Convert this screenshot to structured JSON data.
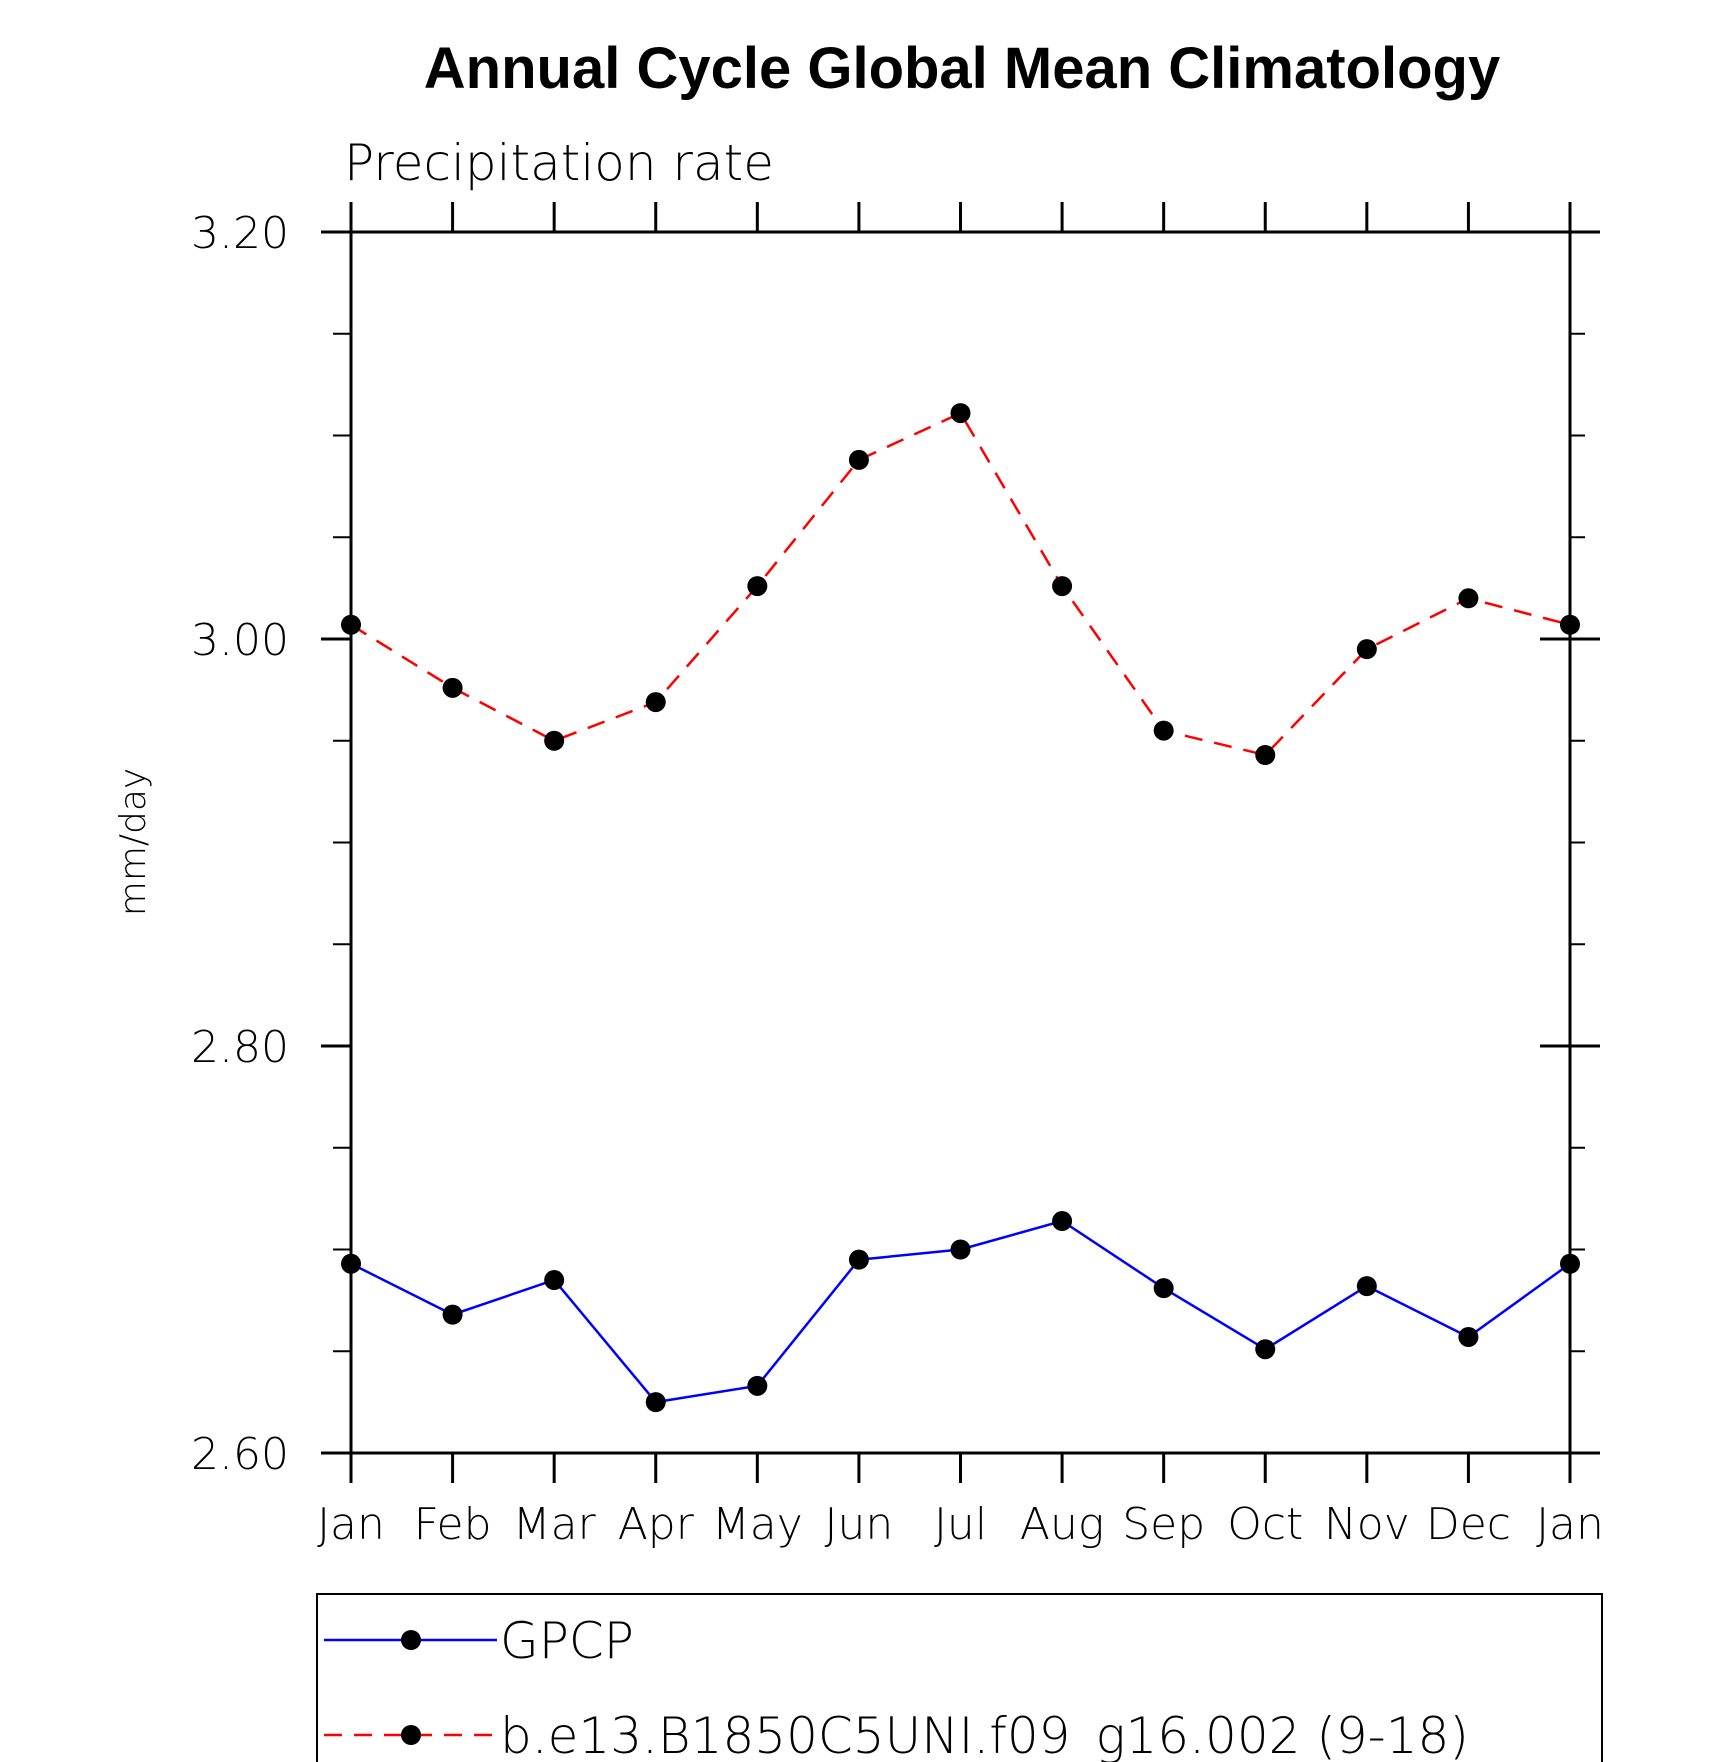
{
  "chart_data": {
    "type": "line",
    "title": "Annual Cycle Global Mean Climatology",
    "subtitle": "Precipitation rate",
    "xlabel": "",
    "ylabel": "mm/day",
    "categories": [
      "Jan",
      "Feb",
      "Mar",
      "Apr",
      "May",
      "Jun",
      "Jul",
      "Aug",
      "Sep",
      "Oct",
      "Nov",
      "Dec",
      "Jan"
    ],
    "ylim": [
      2.6,
      3.2
    ],
    "yticks_major": [
      2.6,
      2.8,
      3.0,
      3.2
    ],
    "ytick_labels": [
      "2.60",
      "2.80",
      "3.00",
      "3.20"
    ],
    "yticks_minor": [
      2.65,
      2.7,
      2.75,
      2.85,
      2.9,
      2.95,
      3.05,
      3.1,
      3.15
    ],
    "grid": false,
    "legend_position": "bottom",
    "series": [
      {
        "name": "GPCP",
        "color": "#0000ff",
        "line_style": "solid",
        "marker": "filled-circle",
        "values": [
          2.693,
          2.668,
          2.685,
          2.625,
          2.633,
          2.695,
          2.7,
          2.714,
          2.681,
          2.651,
          2.682,
          2.657,
          2.693
        ]
      },
      {
        "name": "b.e13.B1850C5UNI.f09_g16.002 (9-18)",
        "color": "#ff0000",
        "line_style": "dashed",
        "marker": "filled-circle",
        "values": [
          3.007,
          2.976,
          2.95,
          2.969,
          3.026,
          3.088,
          3.111,
          3.026,
          2.955,
          2.943,
          2.995,
          3.02,
          3.007
        ]
      }
    ]
  }
}
